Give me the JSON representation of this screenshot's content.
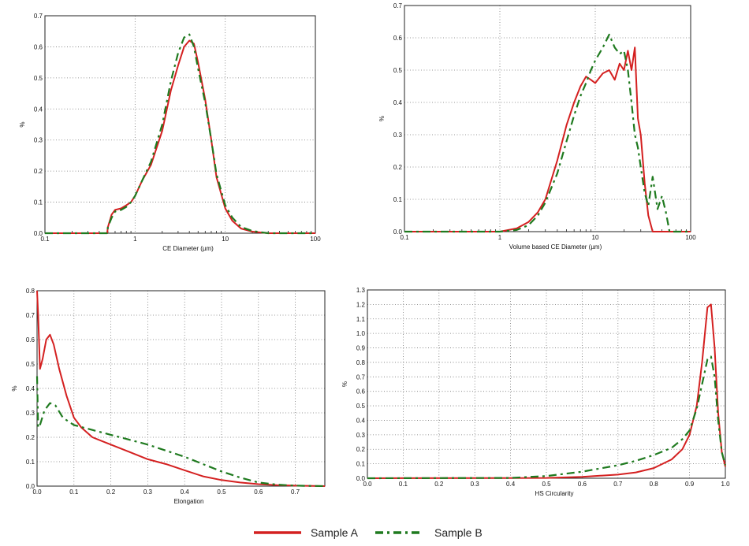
{
  "colors": {
    "sample_a": "#d42020",
    "sample_b": "#1f7a1f",
    "grid": "#777777"
  },
  "legend": [
    {
      "label": "Sample A",
      "style": "solid",
      "color": "#d42020"
    },
    {
      "label": "Sample B",
      "style": "dash-dot",
      "color": "#1f7a1f"
    }
  ],
  "chart_data": [
    {
      "type": "line",
      "xlabel": "CE Diameter (µm)",
      "ylabel": "%",
      "xscale": "log",
      "xlim": [
        0.1,
        100
      ],
      "ylim": [
        0,
        0.7
      ],
      "xticks": [
        0.1,
        1,
        10,
        100
      ],
      "xticklabels": [
        "0.1",
        "1",
        "10",
        "100"
      ],
      "yticks": [
        0,
        0.1,
        0.2,
        0.3,
        0.4,
        0.5,
        0.6,
        0.7
      ],
      "yticklabels": [
        "0.0",
        "0.1",
        "0.2",
        "0.3",
        "0.4",
        "0.5",
        "0.6",
        "0.7"
      ],
      "grid": true,
      "series": [
        {
          "name": "Sample A",
          "x": [
            0.1,
            0.49,
            0.5,
            0.55,
            0.6,
            0.7,
            0.8,
            0.9,
            1.0,
            1.2,
            1.5,
            2.0,
            2.5,
            3.0,
            3.5,
            4.0,
            4.5,
            5.0,
            6.0,
            7.0,
            8.0,
            10.0,
            12.0,
            15.0,
            20.0,
            30.0,
            100.0
          ],
          "y": [
            0,
            0,
            0.02,
            0.06,
            0.075,
            0.08,
            0.09,
            0.1,
            0.12,
            0.17,
            0.22,
            0.33,
            0.46,
            0.54,
            0.6,
            0.62,
            0.61,
            0.55,
            0.43,
            0.3,
            0.18,
            0.08,
            0.04,
            0.015,
            0.005,
            0.0,
            0.0
          ]
        },
        {
          "name": "Sample B",
          "x": [
            0.1,
            0.49,
            0.5,
            0.55,
            0.6,
            0.7,
            0.8,
            0.9,
            1.0,
            1.2,
            1.5,
            2.0,
            2.5,
            3.0,
            3.5,
            4.0,
            4.5,
            5.0,
            6.0,
            7.0,
            8.0,
            10.0,
            12.0,
            15.0,
            20.0,
            30.0,
            100.0
          ],
          "y": [
            0,
            0,
            0.02,
            0.05,
            0.07,
            0.075,
            0.085,
            0.1,
            0.12,
            0.17,
            0.23,
            0.35,
            0.49,
            0.58,
            0.63,
            0.64,
            0.6,
            0.53,
            0.42,
            0.3,
            0.19,
            0.09,
            0.05,
            0.02,
            0.007,
            0.0,
            0.0
          ]
        }
      ]
    },
    {
      "type": "line",
      "xlabel": "Volume based CE Diameter (µm)",
      "ylabel": "%",
      "xscale": "log",
      "xlim": [
        0.1,
        100
      ],
      "ylim": [
        0,
        0.7
      ],
      "xticks": [
        0.1,
        1,
        10,
        100
      ],
      "xticklabels": [
        "0.1",
        "1",
        "10",
        "100"
      ],
      "yticks": [
        0,
        0.1,
        0.2,
        0.3,
        0.4,
        0.5,
        0.6,
        0.7
      ],
      "yticklabels": [
        "0.0",
        "0.1",
        "0.2",
        "0.3",
        "0.4",
        "0.5",
        "0.6",
        "0.7"
      ],
      "grid": true,
      "series": [
        {
          "name": "Sample A",
          "x": [
            0.1,
            1.0,
            1.5,
            2.0,
            2.5,
            3.0,
            4.0,
            5.0,
            6.0,
            7.0,
            8.0,
            9.0,
            10.0,
            12.0,
            14.0,
            16.0,
            18.0,
            20.0,
            22.0,
            24.0,
            26.0,
            28.0,
            30.0,
            33.0,
            36.0,
            40.0,
            100.0
          ],
          "y": [
            0,
            0,
            0.01,
            0.03,
            0.06,
            0.1,
            0.22,
            0.33,
            0.4,
            0.45,
            0.48,
            0.47,
            0.46,
            0.49,
            0.5,
            0.47,
            0.52,
            0.5,
            0.56,
            0.5,
            0.57,
            0.35,
            0.3,
            0.15,
            0.05,
            0.0,
            0.0
          ]
        },
        {
          "name": "Sample B",
          "x": [
            0.1,
            1.0,
            1.5,
            2.0,
            2.5,
            3.0,
            4.0,
            5.0,
            6.0,
            7.0,
            8.0,
            9.0,
            10.0,
            12.0,
            14.0,
            16.0,
            18.0,
            20.0,
            22.0,
            24.0,
            26.0,
            28.0,
            30.0,
            33.0,
            36.0,
            40.0,
            45.0,
            50.0,
            55.0,
            60.0,
            100.0
          ],
          "y": [
            0,
            0,
            0.005,
            0.02,
            0.05,
            0.09,
            0.18,
            0.28,
            0.36,
            0.42,
            0.46,
            0.5,
            0.53,
            0.57,
            0.61,
            0.57,
            0.55,
            0.56,
            0.5,
            0.4,
            0.3,
            0.26,
            0.2,
            0.12,
            0.08,
            0.17,
            0.07,
            0.11,
            0.06,
            0.0,
            0.0
          ]
        }
      ]
    },
    {
      "type": "line",
      "xlabel": "Elongation",
      "ylabel": "%",
      "xscale": "linear",
      "xlim": [
        0,
        0.78
      ],
      "ylim": [
        0,
        0.8
      ],
      "xticks": [
        0,
        0.1,
        0.2,
        0.3,
        0.4,
        0.5,
        0.6,
        0.7
      ],
      "xticklabels": [
        "0.0",
        "0.1",
        "0.2",
        "0.3",
        "0.4",
        "0.5",
        "0.6",
        "0.7"
      ],
      "yticks": [
        0,
        0.1,
        0.2,
        0.3,
        0.4,
        0.5,
        0.6,
        0.7,
        0.8
      ],
      "yticklabels": [
        "0.0",
        "0.1",
        "0.2",
        "0.3",
        "0.4",
        "0.5",
        "0.6",
        "0.7",
        "0.8"
      ],
      "grid": true,
      "series": [
        {
          "name": "Sample A",
          "x": [
            0.0,
            0.003,
            0.008,
            0.015,
            0.025,
            0.035,
            0.045,
            0.06,
            0.08,
            0.1,
            0.12,
            0.15,
            0.2,
            0.25,
            0.3,
            0.35,
            0.4,
            0.45,
            0.5,
            0.55,
            0.6,
            0.65,
            0.7,
            0.78
          ],
          "y": [
            0.8,
            0.7,
            0.48,
            0.52,
            0.6,
            0.62,
            0.58,
            0.48,
            0.37,
            0.28,
            0.24,
            0.2,
            0.17,
            0.14,
            0.11,
            0.09,
            0.065,
            0.04,
            0.025,
            0.015,
            0.008,
            0.004,
            0.002,
            0.0
          ]
        },
        {
          "name": "Sample B",
          "x": [
            0.0,
            0.003,
            0.008,
            0.02,
            0.035,
            0.05,
            0.07,
            0.1,
            0.15,
            0.2,
            0.25,
            0.3,
            0.35,
            0.4,
            0.45,
            0.5,
            0.55,
            0.6,
            0.65,
            0.7,
            0.78
          ],
          "y": [
            0.45,
            0.24,
            0.25,
            0.31,
            0.34,
            0.33,
            0.28,
            0.25,
            0.23,
            0.21,
            0.19,
            0.17,
            0.145,
            0.12,
            0.09,
            0.06,
            0.035,
            0.015,
            0.006,
            0.002,
            0.0
          ]
        }
      ]
    },
    {
      "type": "line",
      "xlabel": "HS Circularity",
      "ylabel": "%",
      "xscale": "linear",
      "xlim": [
        0,
        1
      ],
      "ylim": [
        0,
        1.3
      ],
      "xticks": [
        0,
        0.1,
        0.2,
        0.3,
        0.4,
        0.5,
        0.6,
        0.7,
        0.8,
        0.9,
        1.0
      ],
      "xticklabels": [
        "0.0",
        "0.1",
        "0.2",
        "0.3",
        "0.4",
        "0.5",
        "0.6",
        "0.7",
        "0.8",
        "0.9",
        "1.0"
      ],
      "yticks": [
        0,
        0.1,
        0.2,
        0.3,
        0.4,
        0.5,
        0.6,
        0.7,
        0.8,
        0.9,
        1.0,
        1.1,
        1.2,
        1.3
      ],
      "yticklabels": [
        "0.0",
        "0.1",
        "0.2",
        "0.3",
        "0.4",
        "0.5",
        "0.6",
        "0.7",
        "0.8",
        "0.9",
        "1.0",
        "1.1",
        "1.2",
        "1.3"
      ],
      "grid": true,
      "series": [
        {
          "name": "Sample A",
          "x": [
            0.0,
            0.5,
            0.6,
            0.7,
            0.75,
            0.8,
            0.85,
            0.88,
            0.9,
            0.92,
            0.935,
            0.95,
            0.96,
            0.97,
            0.98,
            0.99,
            1.0
          ],
          "y": [
            0,
            0.002,
            0.01,
            0.025,
            0.04,
            0.07,
            0.13,
            0.2,
            0.3,
            0.5,
            0.8,
            1.18,
            1.2,
            0.9,
            0.45,
            0.18,
            0.08
          ]
        },
        {
          "name": "Sample B",
          "x": [
            0.0,
            0.4,
            0.5,
            0.6,
            0.7,
            0.75,
            0.8,
            0.85,
            0.88,
            0.9,
            0.92,
            0.935,
            0.95,
            0.96,
            0.97,
            0.98,
            0.99,
            1.0
          ],
          "y": [
            0,
            0.002,
            0.015,
            0.045,
            0.09,
            0.12,
            0.16,
            0.21,
            0.27,
            0.33,
            0.48,
            0.65,
            0.82,
            0.84,
            0.7,
            0.4,
            0.18,
            0.09
          ]
        }
      ]
    }
  ]
}
